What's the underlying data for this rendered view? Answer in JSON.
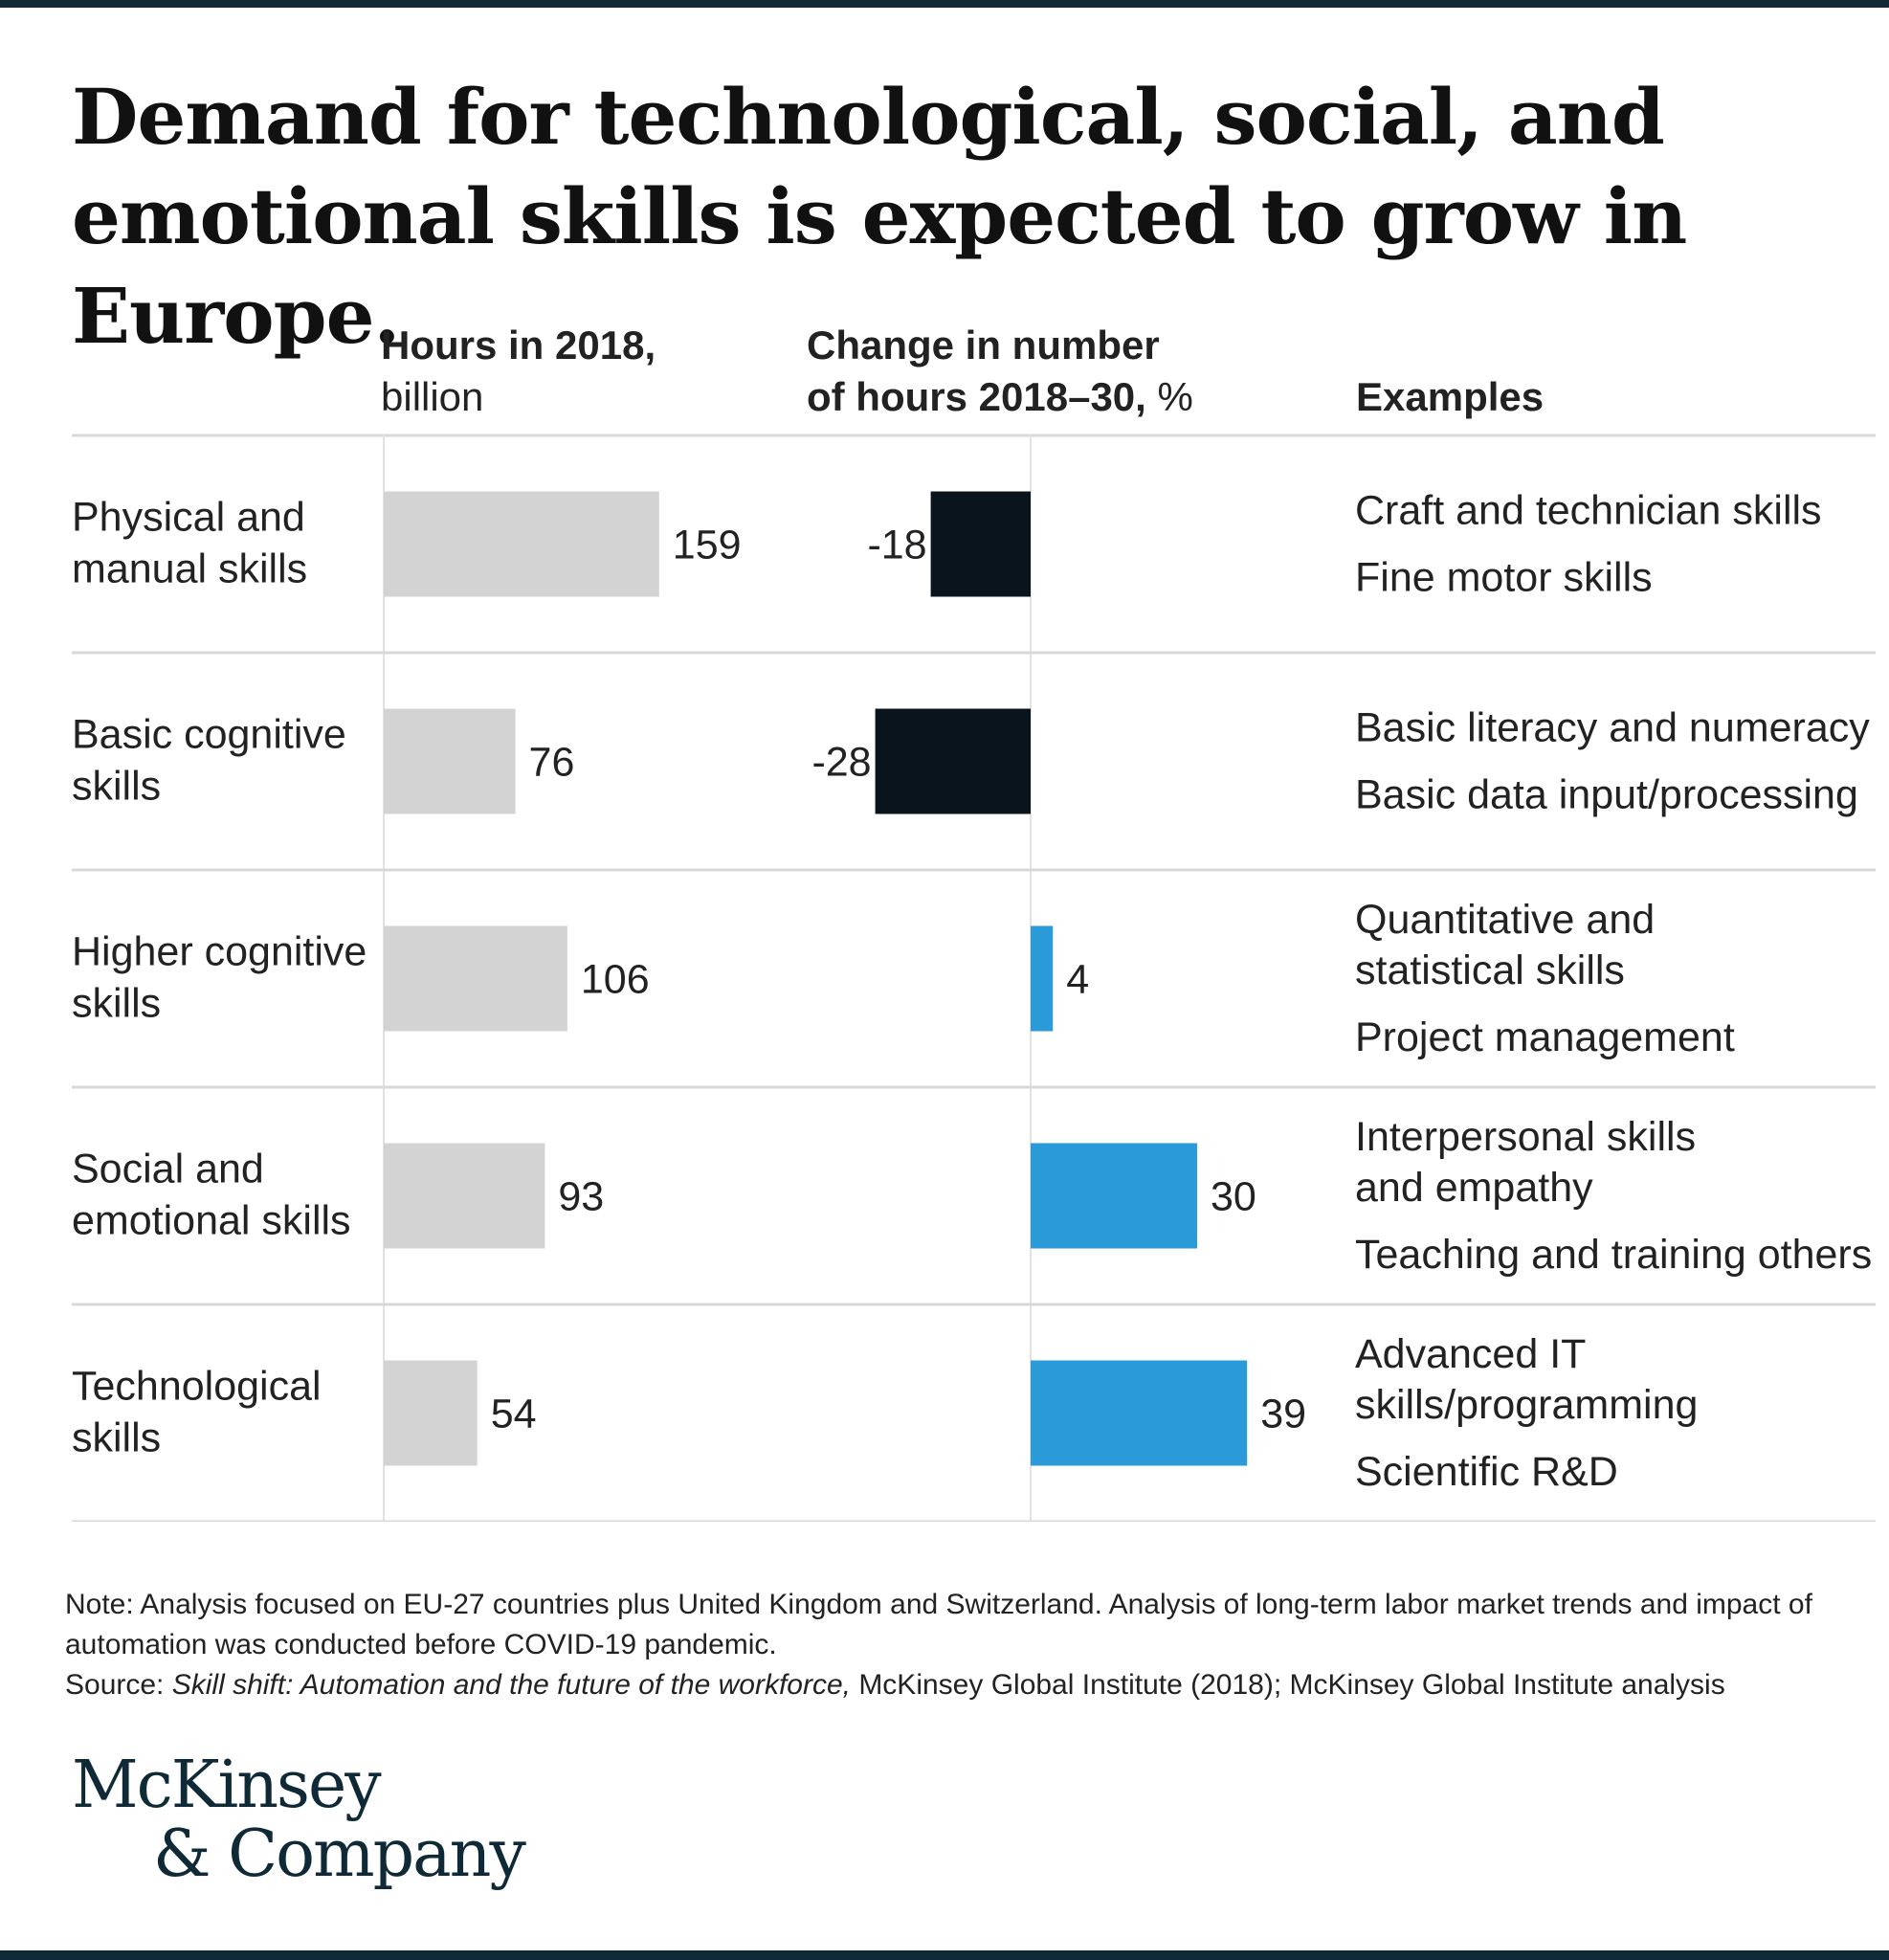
{
  "title": "Demand for technological, social, and emotional skills is expected to grow in Europe.",
  "columns": {
    "hours_bold": "Hours in 2018,",
    "hours_unit": "billion",
    "change_line1": "Change in number",
    "change_line2_bold": "of hours 2018–30,",
    "change_unit": "%",
    "examples": "Examples"
  },
  "chart_data": {
    "type": "bar",
    "title": "Demand for technological, social, and emotional skills is expected to grow in Europe.",
    "categories": [
      "Physical and manual skills",
      "Basic cognitive skills",
      "Higher cognitive skills",
      "Social and emotional skills",
      "Technological skills"
    ],
    "category_lines": [
      [
        "Physical and",
        "manual skills"
      ],
      [
        "Basic cognitive",
        "skills"
      ],
      [
        "Higher cognitive",
        "skills"
      ],
      [
        "Social and",
        "emotional skills"
      ],
      [
        "Technological",
        "skills"
      ]
    ],
    "series": [
      {
        "name": "Hours in 2018, billion",
        "values": [
          159,
          76,
          106,
          93,
          54
        ],
        "color": "#d3d3d3"
      },
      {
        "name": "Change in number of hours 2018–30, %",
        "values": [
          -18,
          -28,
          4,
          30,
          39
        ],
        "neg_color": "#0a141c",
        "pos_color": "#2b9ad8"
      }
    ],
    "examples": [
      [
        [
          "Craft and technician skills"
        ],
        [
          "Fine motor skills"
        ]
      ],
      [
        [
          "Basic literacy and numeracy"
        ],
        [
          "Basic data input/processing"
        ]
      ],
      [
        [
          "Quantitative and",
          "statistical skills"
        ],
        [
          "Project management"
        ]
      ],
      [
        [
          "Interpersonal skills",
          "and empathy"
        ],
        [
          "Teaching and training others"
        ]
      ],
      [
        [
          "Advanced IT",
          "skills/programming"
        ],
        [
          "Scientific R&D"
        ]
      ]
    ]
  },
  "notes": {
    "note": "Note: Analysis focused on EU-27 countries plus United Kingdom and Switzerland. Analysis of long-term labor market trends and impact of automation was conducted before COVID-19 pandemic.",
    "source_prefix": "Source: ",
    "source_title": "Skill shift: Automation and the future of the workforce,",
    "source_rest": " McKinsey Global Institute (2018); McKinsey Global Institute analysis"
  },
  "logo": {
    "line1": "McKinsey",
    "line2": "& Company"
  }
}
